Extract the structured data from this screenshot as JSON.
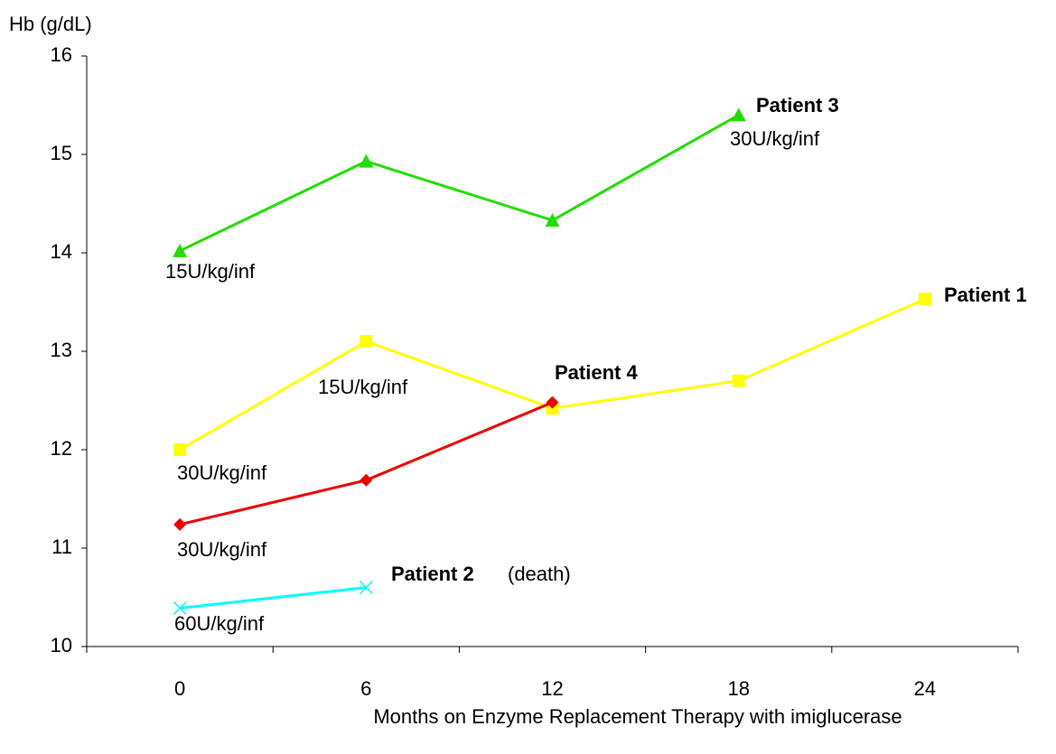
{
  "chart_data": {
    "type": "line",
    "y_label": "Hb (g/dL)",
    "x_label": "Months on Enzyme Replacement Therapy with imiglucerase",
    "categories": [
      "0",
      "6",
      "12",
      "18",
      "24"
    ],
    "ylim": [
      10,
      16
    ],
    "yticks": [
      10,
      11,
      12,
      13,
      14,
      15,
      16
    ],
    "series": [
      {
        "name": "Patient 3",
        "color": "#22dd00",
        "marker": "triangle",
        "values": [
          14.02,
          14.93,
          14.33,
          15.4,
          null
        ]
      },
      {
        "name": "Patient 1",
        "color": "#ffff00",
        "marker": "square",
        "values": [
          12.0,
          13.1,
          12.42,
          12.7,
          13.53
        ]
      },
      {
        "name": "Patient 4",
        "color": "#ee0000",
        "marker": "diamond",
        "values": [
          11.24,
          11.69,
          12.48,
          null,
          null
        ]
      },
      {
        "name": "Patient 2",
        "color": "#00ffff",
        "marker": "x",
        "values": [
          10.39,
          10.6,
          null,
          null,
          null
        ]
      }
    ],
    "annotations": [
      "30U/kg/inf",
      "15U/kg/inf",
      "15U/kg/inf",
      "30U/kg/inf",
      "30U/kg/inf",
      "60U/kg/inf",
      "(death)"
    ]
  }
}
